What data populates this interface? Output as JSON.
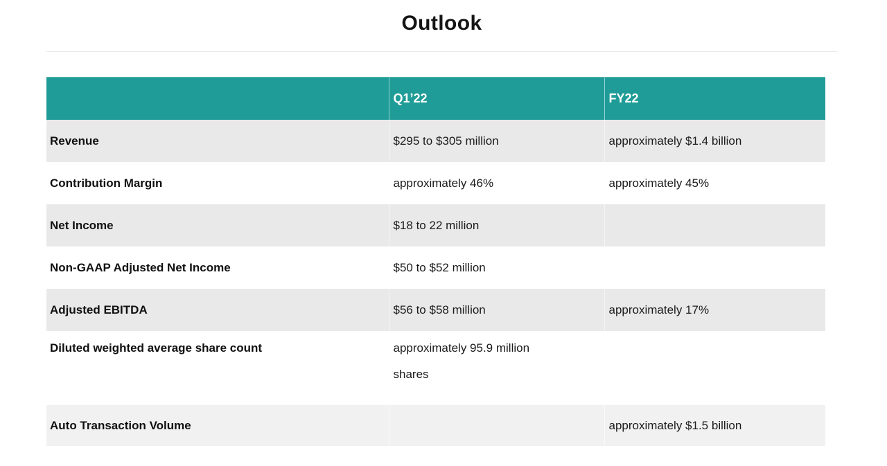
{
  "title": "Outlook",
  "colors": {
    "header_bg": "#1f9c97",
    "header_text": "#ffffff",
    "row_shade": "#e9e9e9",
    "row_shade_light": "#f1f1f1",
    "divider": "#e9e9e9",
    "text": "#1a1a1a"
  },
  "chart_data": {
    "type": "table",
    "title": "Outlook",
    "columns": [
      "",
      "Q1’22",
      "FY22"
    ],
    "rows": [
      {
        "label": "Revenue",
        "q1_22": "$295 to $305 million",
        "fy22": "approximately $1.4 billion"
      },
      {
        "label": "Contribution Margin",
        "q1_22": "approximately 46%",
        "fy22": "approximately 45%"
      },
      {
        "label": "Net Income",
        "q1_22": "$18 to 22 million",
        "fy22": ""
      },
      {
        "label": "Non-GAAP Adjusted Net Income",
        "q1_22": "$50 to $52 million",
        "fy22": ""
      },
      {
        "label": "Adjusted EBITDA",
        "q1_22": "$56 to $58 million",
        "fy22": "approximately 17%"
      },
      {
        "label": "Diluted weighted average share count",
        "q1_22": "approximately 95.9 million shares",
        "fy22": ""
      },
      {
        "label": "Auto Transaction Volume",
        "q1_22": "",
        "fy22": "approximately $1.5 billion"
      }
    ]
  }
}
